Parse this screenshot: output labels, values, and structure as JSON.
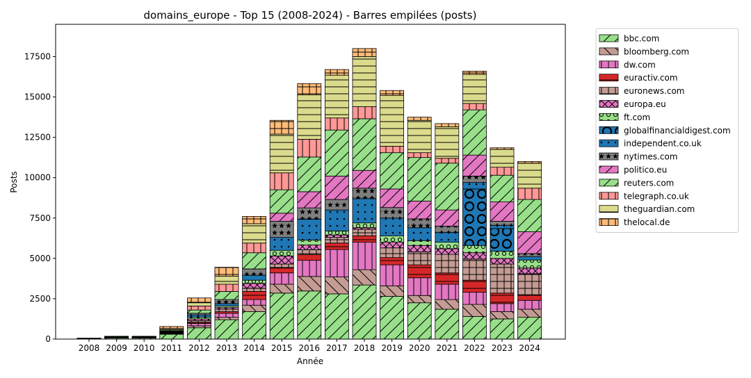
{
  "chart_data": {
    "type": "bar",
    "stacked": true,
    "title": "domains_europe - Top 15 (2008-2024) - Barres empilées (posts)",
    "xlabel": "Année",
    "ylabel": "Posts",
    "ylim": [
      0,
      19500
    ],
    "yticks": [
      0,
      2500,
      5000,
      7500,
      10000,
      12500,
      15000,
      17500
    ],
    "ytick_labels": [
      "0",
      "2500",
      "5000",
      "7500",
      "10000",
      "12500",
      "15000",
      "17500"
    ],
    "legend_position": "outside-right",
    "categories": [
      "2008",
      "2009",
      "2010",
      "2011",
      "2012",
      "2013",
      "2014",
      "2015",
      "2016",
      "2017",
      "2018",
      "2019",
      "2020",
      "2021",
      "2022",
      "2023",
      "2024"
    ],
    "series": [
      {
        "name": "bbc.com",
        "color": "#98df8a",
        "hatch": "diag",
        "values": [
          20,
          80,
          80,
          300,
          700,
          1200,
          1700,
          2850,
          2980,
          2800,
          3350,
          2650,
          2250,
          1850,
          1400,
          1250,
          1350
        ]
      },
      {
        "name": "bloomberg.com",
        "color": "#c49c94",
        "hatch": "back",
        "values": [
          3,
          8,
          8,
          20,
          120,
          150,
          400,
          550,
          900,
          1050,
          950,
          650,
          450,
          600,
          750,
          450,
          500
        ]
      },
      {
        "name": "dw.com",
        "color": "#e377c2",
        "hatch": "vert",
        "values": [
          3,
          8,
          8,
          30,
          150,
          250,
          350,
          700,
          1000,
          1700,
          1700,
          1300,
          1100,
          950,
          750,
          500,
          550
        ]
      },
      {
        "name": "euractiv.com",
        "color": "#d62728",
        "hatch": "horiz",
        "values": [
          3,
          8,
          8,
          20,
          80,
          100,
          500,
          300,
          350,
          400,
          400,
          450,
          800,
          700,
          750,
          650,
          350
        ]
      },
      {
        "name": "euronews.com",
        "color": "#c49c94",
        "hatch": "grid",
        "values": [
          3,
          8,
          8,
          30,
          100,
          150,
          200,
          250,
          300,
          350,
          400,
          600,
          800,
          1150,
          1300,
          1800,
          1300
        ]
      },
      {
        "name": "europa.eu",
        "color": "#e377c2",
        "hatch": "cross",
        "values": [
          3,
          8,
          8,
          20,
          100,
          100,
          300,
          500,
          300,
          150,
          100,
          350,
          400,
          350,
          400,
          350,
          350
        ]
      },
      {
        "name": "ft.com",
        "color": "#98df8a",
        "hatch": "ring",
        "values": [
          3,
          8,
          8,
          20,
          100,
          100,
          200,
          350,
          300,
          250,
          300,
          400,
          300,
          400,
          450,
          450,
          500
        ]
      },
      {
        "name": "globalfinancialdigest.com",
        "color": "#1f77b4",
        "hatch": "bigring",
        "values": [
          0,
          0,
          0,
          0,
          0,
          0,
          0,
          0,
          0,
          0,
          0,
          0,
          0,
          0,
          3500,
          1400,
          0
        ]
      },
      {
        "name": "independent.co.uk",
        "color": "#1f77b4",
        "hatch": "dots",
        "values": [
          3,
          8,
          8,
          30,
          150,
          150,
          300,
          800,
          1300,
          1300,
          1500,
          1100,
          800,
          600,
          400,
          200,
          200
        ]
      },
      {
        "name": "nytimes.com",
        "color": "#7f7f7f",
        "hatch": "star",
        "values": [
          3,
          8,
          8,
          30,
          100,
          250,
          400,
          1000,
          700,
          650,
          650,
          650,
          550,
          400,
          400,
          250,
          200
        ]
      },
      {
        "name": "politico.eu",
        "color": "#e377c2",
        "hatch": "diag",
        "values": [
          0,
          0,
          0,
          0,
          0,
          0,
          0,
          500,
          1000,
          1450,
          1100,
          1150,
          1100,
          1000,
          1300,
          1200,
          1350
        ]
      },
      {
        "name": "reuters.com",
        "color": "#98df8a",
        "hatch": "diag",
        "values": [
          3,
          8,
          8,
          60,
          200,
          500,
          1000,
          1450,
          2150,
          2850,
          3200,
          2250,
          2700,
          2900,
          2800,
          1650,
          2000
        ]
      },
      {
        "name": "telegraph.co.uk",
        "color": "#ff9896",
        "hatch": "vert",
        "values": [
          3,
          8,
          8,
          40,
          250,
          450,
          600,
          1050,
          1100,
          750,
          750,
          400,
          300,
          300,
          400,
          500,
          700
        ]
      },
      {
        "name": "theguardian.com",
        "color": "#dbdb8d",
        "hatch": "horiz",
        "values": [
          3,
          8,
          8,
          60,
          200,
          500,
          1200,
          2400,
          2750,
          2650,
          3100,
          3150,
          2000,
          1950,
          1800,
          1100,
          1550
        ]
      },
      {
        "name": "thelocal.de",
        "color": "#ffbb78",
        "hatch": "grid",
        "values": [
          3,
          8,
          8,
          120,
          300,
          550,
          450,
          850,
          700,
          350,
          500,
          300,
          200,
          200,
          200,
          100,
          100
        ]
      }
    ]
  }
}
